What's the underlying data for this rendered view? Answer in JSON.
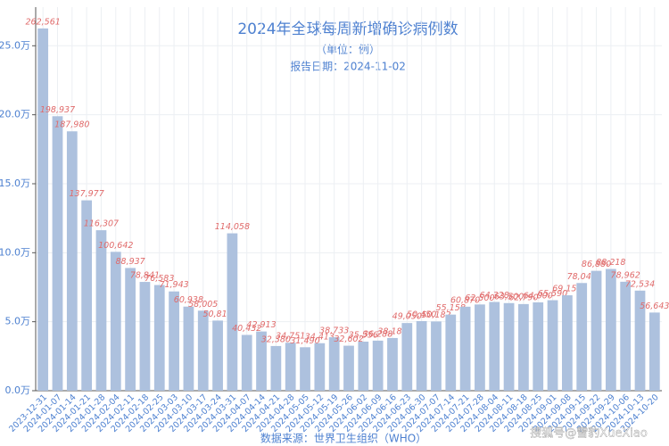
{
  "chart_data": {
    "type": "bar",
    "title": "2024年全球每周新增确诊病例数",
    "subtitle": "（单位：例）",
    "report_date": "报告日期：2024-11-02",
    "xlabel": "数据来源：世界卫生组织（WHO）",
    "watermark": "搜狐号@雪豹XueXiao",
    "categories": [
      "2023-12-31",
      "2024-01-07",
      "2024-01-14",
      "2024-01-21",
      "2024-01-28",
      "2024-02-04",
      "2024-02-11",
      "2024-02-18",
      "2024-02-25",
      "2024-03-03",
      "2024-03-10",
      "2024-03-17",
      "2024-03-24",
      "2024-03-31",
      "2024-04-07",
      "2024-04-14",
      "2024-04-21",
      "2024-04-28",
      "2024-05-05",
      "2024-05-12",
      "2024-05-19",
      "2024-05-26",
      "2024-06-02",
      "2024-06-09",
      "2024-06-16",
      "2024-06-23",
      "2024-06-30",
      "2024-07-07",
      "2024-07-14",
      "2024-07-21",
      "2024-07-28",
      "2024-08-04",
      "2024-08-11",
      "2024-08-18",
      "2024-08-25",
      "2024-09-01",
      "2024-09-08",
      "2024-09-15",
      "2024-09-22",
      "2024-09-29",
      "2024-10-06",
      "2024-10-13",
      "2024-10-20"
    ],
    "values": [
      262561,
      198937,
      187980,
      137977,
      116307,
      100642,
      88937,
      78841,
      76583,
      71943,
      60938,
      58005,
      50816,
      114058,
      40432,
      42913,
      32380,
      34751,
      31490,
      34413,
      38733,
      32602,
      35556,
      36288,
      38186,
      49050,
      50450,
      50182,
      55158,
      60870,
      62500,
      64328,
      63500,
      62790,
      64000,
      65590,
      69152,
      78043,
      86880,
      88218,
      78962,
      72534,
      56643
    ],
    "value_labels": [
      "262,561",
      "198,937",
      "187,980",
      "137,977",
      "116,307",
      "100,642",
      "88,937",
      "78,841",
      "76,583",
      "71,943",
      "60,938",
      "58,005",
      "50,816",
      "114,058",
      "40,432",
      "42,913",
      "32,380",
      "34,751",
      "31,490",
      "34,413",
      "38,733",
      "32,602",
      "35,556",
      "36,288",
      "38,186",
      "49,050",
      "50,450",
      "50,182",
      "55,158",
      "60,870",
      "62,500",
      "64,328",
      "63,500",
      "62,790",
      "64,000",
      "65,590",
      "69,152",
      "78,043",
      "86,880",
      "88,218",
      "78,962",
      "72,534",
      "56,643"
    ],
    "color": "#adc1de",
    "label_color": "#e06a6a",
    "ylim": [
      0,
      278000
    ],
    "yticks": [
      {
        "value": 0,
        "label": "0.0万"
      },
      {
        "value": 50000,
        "label": "5.0万"
      },
      {
        "value": 100000,
        "label": "10.0万"
      },
      {
        "value": 150000,
        "label": "15.0万"
      },
      {
        "value": 200000,
        "label": "20.0万"
      },
      {
        "value": 250000,
        "label": "25.0万"
      }
    ],
    "grid": true
  }
}
